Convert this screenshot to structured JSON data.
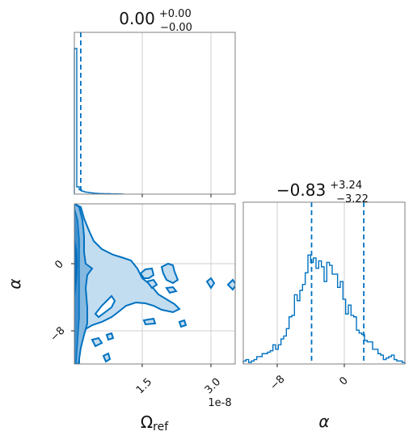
{
  "chart_data": [
    {
      "type": "histogram",
      "panel": "top-left",
      "parameter": "Omega_ref",
      "title_value": "0.00",
      "title_upper": "+0.00",
      "title_lower": "−0.00",
      "xlim": [
        0,
        3.4e-08
      ],
      "x_tick_values": [
        1.5e-08,
        3e-08
      ],
      "quantile_lines": [
        1e-09
      ],
      "line_color": "#0072c1",
      "bin_heights": [
        1.0,
        0.05,
        0.03,
        0.02,
        0.015,
        0.012,
        0.01,
        0.008,
        0.006,
        0.005,
        0.004,
        0.004,
        0.003,
        0.003,
        0.003,
        0.002,
        0.002,
        0.002,
        0.001,
        0.001
      ]
    },
    {
      "type": "contour",
      "panel": "bottom-left",
      "x_parameter": "Omega_ref",
      "y_parameter": "alpha",
      "xlim": [
        0,
        3.4e-08
      ],
      "ylim": [
        -12.5,
        11.5
      ],
      "x_tick_labels": [
        "1.5",
        "3.0"
      ],
      "x_tick_values": [
        1.5e-08,
        3e-08
      ],
      "x_offset_label": "1e-8",
      "y_tick_labels": [
        "0",
        "−8"
      ],
      "y_tick_values": [
        0,
        -8
      ],
      "xlabel": "Ωref",
      "ylabel": "α",
      "fill_colors": [
        "#c2dcf0",
        "#86b9e0",
        "#3f8fcf",
        "#0a6fbf"
      ],
      "line_color": "#0072c1"
    },
    {
      "type": "histogram",
      "panel": "bottom-right",
      "parameter": "alpha",
      "title_value": "−0.83",
      "title_upper": "+3.24",
      "title_lower": "−3.22",
      "xlim": [
        -12.5,
        7.5
      ],
      "x_tick_labels": [
        "−8",
        "0"
      ],
      "x_tick_values": [
        -8,
        0
      ],
      "quantile_lines": [
        -4.05,
        -0.83,
        2.41
      ],
      "xlabel": "α",
      "line_color": "#0072c1",
      "bin_heights": [
        0.02,
        0.03,
        0.01,
        0.02,
        0.03,
        0.05,
        0.05,
        0.07,
        0.07,
        0.08,
        0.09,
        0.13,
        0.1,
        0.13,
        0.17,
        0.19,
        0.24,
        0.32,
        0.33,
        0.47,
        0.43,
        0.5,
        0.54,
        0.62,
        0.74,
        0.69,
        0.72,
        0.65,
        0.7,
        0.66,
        0.56,
        0.69,
        0.67,
        0.61,
        0.61,
        0.52,
        0.56,
        0.44,
        0.34,
        0.4,
        0.33,
        0.32,
        0.23,
        0.21,
        0.2,
        0.16,
        0.15,
        0.15,
        0.1,
        0.1,
        0.07,
        0.06,
        0.03,
        0.04,
        0.05,
        0.06,
        0.03,
        0.02,
        0.02,
        0.01
      ]
    }
  ]
}
